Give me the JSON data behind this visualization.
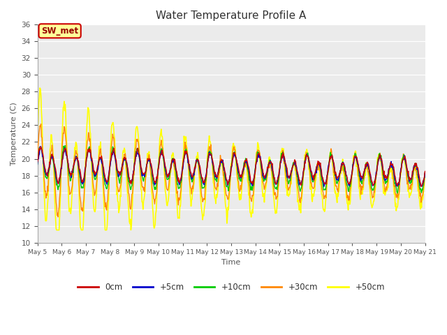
{
  "title": "Water Temperature Profile A",
  "xlabel": "Time",
  "ylabel": "Temperature (C)",
  "ylim": [
    10,
    36
  ],
  "yticks": [
    10,
    12,
    14,
    16,
    18,
    20,
    22,
    24,
    26,
    28,
    30,
    32,
    34,
    36
  ],
  "background_color": "#ffffff",
  "plot_bg_color": "#ebebeb",
  "series": {
    "0cm": {
      "color": "#cc0000",
      "lw": 1.0
    },
    "+5cm": {
      "color": "#0000cc",
      "lw": 1.0
    },
    "+10cm": {
      "color": "#00cc00",
      "lw": 1.0
    },
    "+30cm": {
      "color": "#ff8800",
      "lw": 1.0
    },
    "+50cm": {
      "color": "#ffff00",
      "lw": 1.2
    }
  },
  "legend_label": "SW_met",
  "legend_bg": "#ffff99",
  "legend_border": "#cc0000",
  "n_days": 16,
  "start_day": 5,
  "pts_per_day": 48
}
